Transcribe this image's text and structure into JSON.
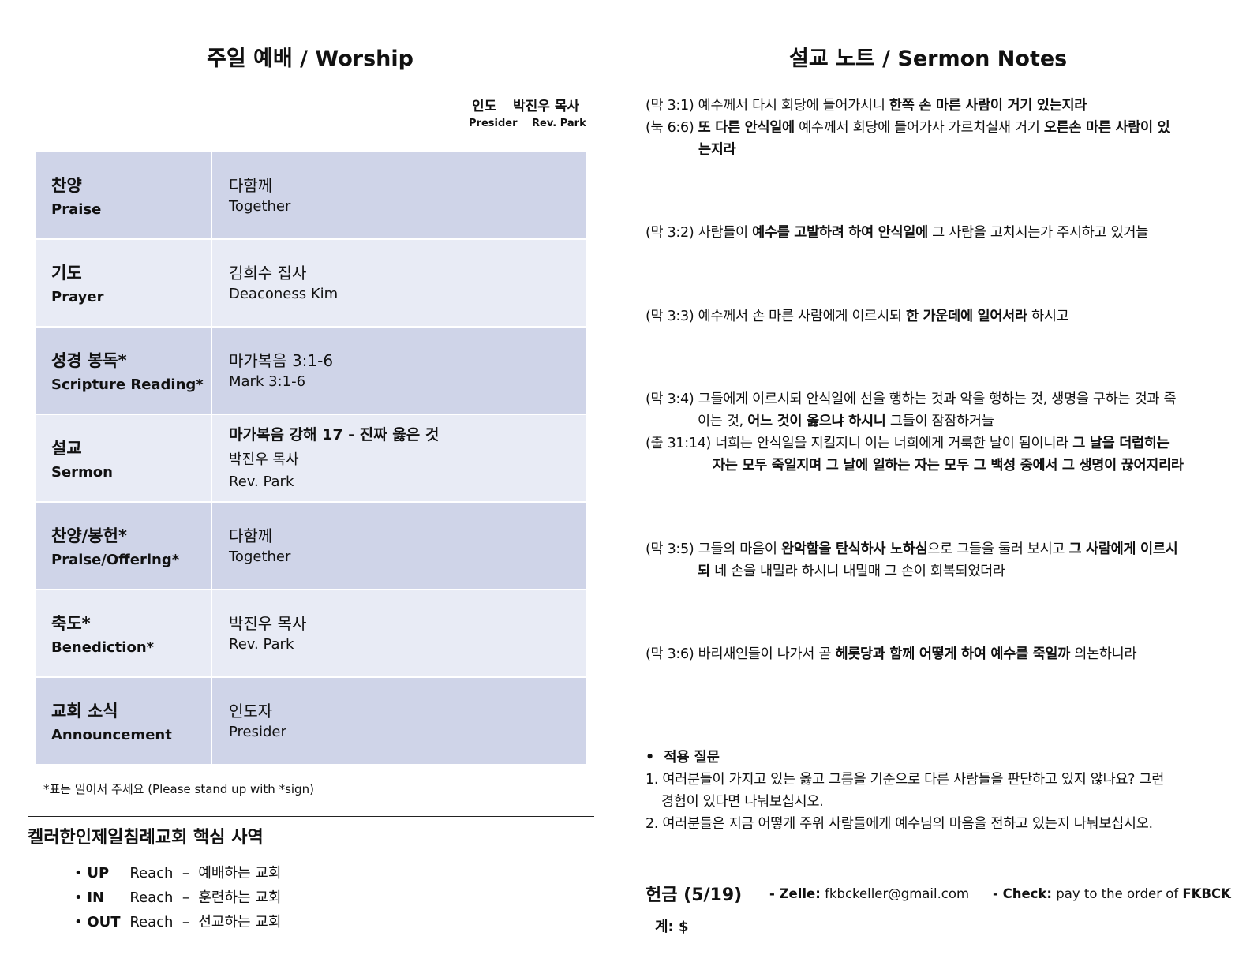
{
  "worship": {
    "title": "주일 예배 / Worship",
    "presider_ko": "인도",
    "presider_name_ko": "박진우 목사",
    "presider_en": "Presider",
    "presider_name_en": "Rev. Park",
    "rows": [
      {
        "ko": "찬양",
        "en": "Praise",
        "lines": [
          "다함께",
          "Together"
        ]
      },
      {
        "ko": "기도",
        "en": "Prayer",
        "lines": [
          "김희수 집사",
          "Deaconess Kim"
        ]
      },
      {
        "ko": "성경 봉독*",
        "en": "Scripture Reading*",
        "lines": [
          "마가복음 3:1-6",
          "Mark 3:1-6"
        ]
      },
      {
        "ko": "설교",
        "en": "Sermon",
        "lines": [
          "마가복음 강해 17 - 진짜 옳은 것",
          "박진우 목사",
          "Rev. Park"
        ]
      },
      {
        "ko": "찬양/봉헌*",
        "en": "Praise/Offering*",
        "lines": [
          "다함께",
          "Together"
        ]
      },
      {
        "ko": "축도*",
        "en": "Benediction*",
        "lines": [
          "박진우 목사",
          "Rev. Park"
        ]
      },
      {
        "ko": "교회 소식",
        "en": "Announcement",
        "lines": [
          "인도자",
          "Presider"
        ]
      }
    ],
    "note": "*표는 일어서 주세요 (Please stand up with *sign)"
  },
  "ministry": {
    "title": "켈러한인제일침례교회 핵심 사역",
    "items": [
      {
        "tag": "UP",
        "text": "Reach  –  예배하는 교회"
      },
      {
        "tag": "IN",
        "text": "Reach  –  훈련하는 교회"
      },
      {
        "tag": "OUT",
        "text": "Reach  –  선교하는 교회"
      }
    ]
  },
  "sermon": {
    "title": "설교 노트 / Sermon Notes",
    "lines": [
      [
        {
          "t": "(막 3:1) 예수께서 다시 회당에 들어가시니 "
        },
        {
          "t": "한쪽 손 마른 사람이 거기 있는지라",
          "b": 1
        }
      ],
      [
        {
          "t": "(눅 6:6) "
        },
        {
          "t": "또 다른 안식일에",
          "b": 1
        },
        {
          "t": " 예수께서 회당에 들어가사 가르치실새 거기 "
        },
        {
          "t": "오른손 마른 사람이 있",
          "b": 1
        }
      ],
      [
        {
          "t": "는지라",
          "b": 1
        }
      ],
      [
        {
          "t": "(막 3:2) 사람들이 "
        },
        {
          "t": "예수를 고발하려 하여 안식일에",
          "b": 1
        },
        {
          "t": " 그 사람을 고치시는가 주시하고 있거늘"
        }
      ],
      [
        {
          "t": "(막 3:3) 예수께서 손 마른 사람에게 이르시되 "
        },
        {
          "t": "한 가운데에 일어서라",
          "b": 1
        },
        {
          "t": " 하시고"
        }
      ],
      [
        {
          "t": "(막 3:4) 그들에게 이르시되 안식일에 선을 행하는 것과 악을 행하는 것, 생명을 구하는 것과 죽"
        }
      ],
      [
        {
          "t": "이는 것, "
        },
        {
          "t": "어느 것이 옳으냐 하시니",
          "b": 1
        },
        {
          "t": " 그들이 잠잠하거늘"
        }
      ],
      [
        {
          "t": "(출 31:14) 너희는 안식일을 지킬지니 이는 너희에게 거룩한 날이 됨이니라 "
        },
        {
          "t": "그 날을 더럽히는",
          "b": 1
        }
      ],
      [
        {
          "t": "자는 모두 죽일지며 그 날에 일하는 자는 모두 그 백성 중에서 그 생명이 끊어지리라",
          "b": 1
        }
      ],
      [
        {
          "t": "(막 3:5) 그들의 마음이 "
        },
        {
          "t": "완악함을 탄식하사 노하심",
          "b": 1
        },
        {
          "t": "으로 그들을 둘러 보시고 "
        },
        {
          "t": "그 사람에게 이르시",
          "b": 1
        }
      ],
      [
        {
          "t": "되",
          "b": 1
        },
        {
          "t": " 네 손을 내밀라 하시니 내밀매 그 손이 회복되었더라"
        }
      ],
      [
        {
          "t": "(막 3:6) 바리새인들이 나가서 곧 "
        },
        {
          "t": "헤롯당과 함께 어떻게 하여 예수를 죽일까",
          "b": 1
        },
        {
          "t": " 의논하니라"
        }
      ]
    ],
    "questions_title": "적용 질문",
    "questions": [
      "1. 여러분들이 가지고 있는 옳고 그름을 기준으로 다른 사람들을 판단하고 있지 않나요? 그런",
      "경험이 있다면 나눠보십시오.",
      "2. 여러분들은 지금 어떻게 주위 사람들에게 예수님의 마음을 전하고 있는지 나눠보십시오."
    ]
  },
  "offering": {
    "title": "헌금 (5/19)",
    "zelle_label": "- Zelle:",
    "zelle": "fkbckeller@gmail.com",
    "check_label": "- Check:",
    "check": "pay to the order of",
    "check_payee": "FKBCK",
    "total": "계: $"
  }
}
